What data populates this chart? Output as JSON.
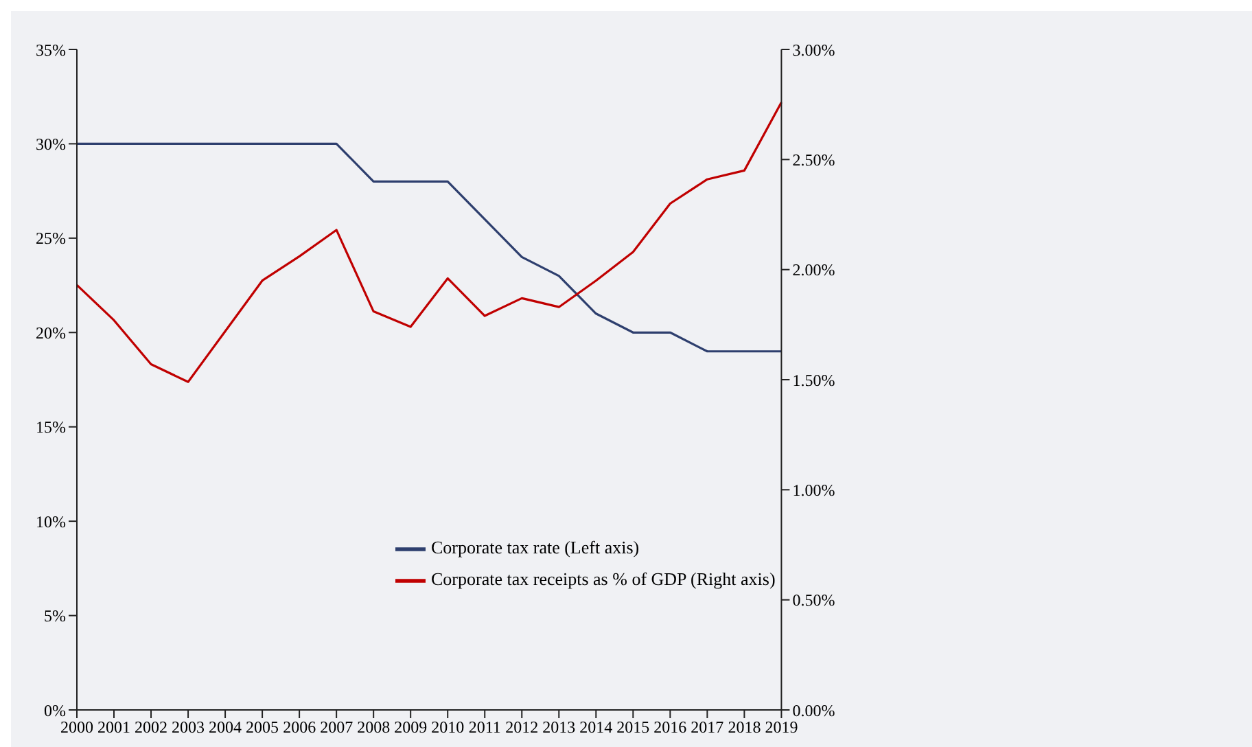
{
  "chart_data": {
    "type": "line",
    "categories": [
      "2000",
      "2001",
      "2002",
      "2003",
      "2004",
      "2005",
      "2006",
      "2007",
      "2008",
      "2009",
      "2010",
      "2011",
      "2012",
      "2013",
      "2014",
      "2015",
      "2016",
      "2017",
      "2018",
      "2019"
    ],
    "series": [
      {
        "name": "Corporate tax rate (Left axis)",
        "color": "#2e3f6e",
        "values": [
          30,
          30,
          30,
          30,
          30,
          30,
          30,
          30,
          28,
          28,
          28,
          26,
          24,
          23,
          21,
          20,
          20,
          19,
          19,
          19
        ]
      },
      {
        "name": "Corporate tax receipts as % of GDP (Right axis)",
        "color": "#c00000",
        "axis": "y2",
        "values": [
          1.93,
          1.77,
          1.57,
          1.49,
          1.72,
          1.95,
          2.06,
          2.18,
          1.81,
          1.74,
          1.96,
          1.79,
          1.87,
          1.83,
          1.95,
          2.08,
          2.3,
          2.41,
          2.45,
          2.76
        ]
      }
    ],
    "ylim": [
      0,
      35
    ],
    "yticks": [
      {
        "value": 0,
        "label": "0%"
      },
      {
        "value": 5,
        "label": "5%"
      },
      {
        "value": 10,
        "label": "10%"
      },
      {
        "value": 15,
        "label": "15%"
      },
      {
        "value": 20,
        "label": "20%"
      },
      {
        "value": 25,
        "label": "25%"
      },
      {
        "value": 30,
        "label": "30%"
      },
      {
        "value": 35,
        "label": "35%"
      }
    ],
    "y2lim": [
      0,
      3
    ],
    "y2ticks": [
      {
        "value": 0,
        "label": "0.00%"
      },
      {
        "value": 0.5,
        "label": "0.50%"
      },
      {
        "value": 1,
        "label": "1.00%"
      },
      {
        "value": 1.5,
        "label": "1.50%"
      },
      {
        "value": 2,
        "label": "2.00%"
      },
      {
        "value": 2.5,
        "label": "2.50%"
      },
      {
        "value": 3,
        "label": "3.00%"
      }
    ],
    "grid": false,
    "legend": "bottom right",
    "marker": "none",
    "line_style": "solid"
  }
}
